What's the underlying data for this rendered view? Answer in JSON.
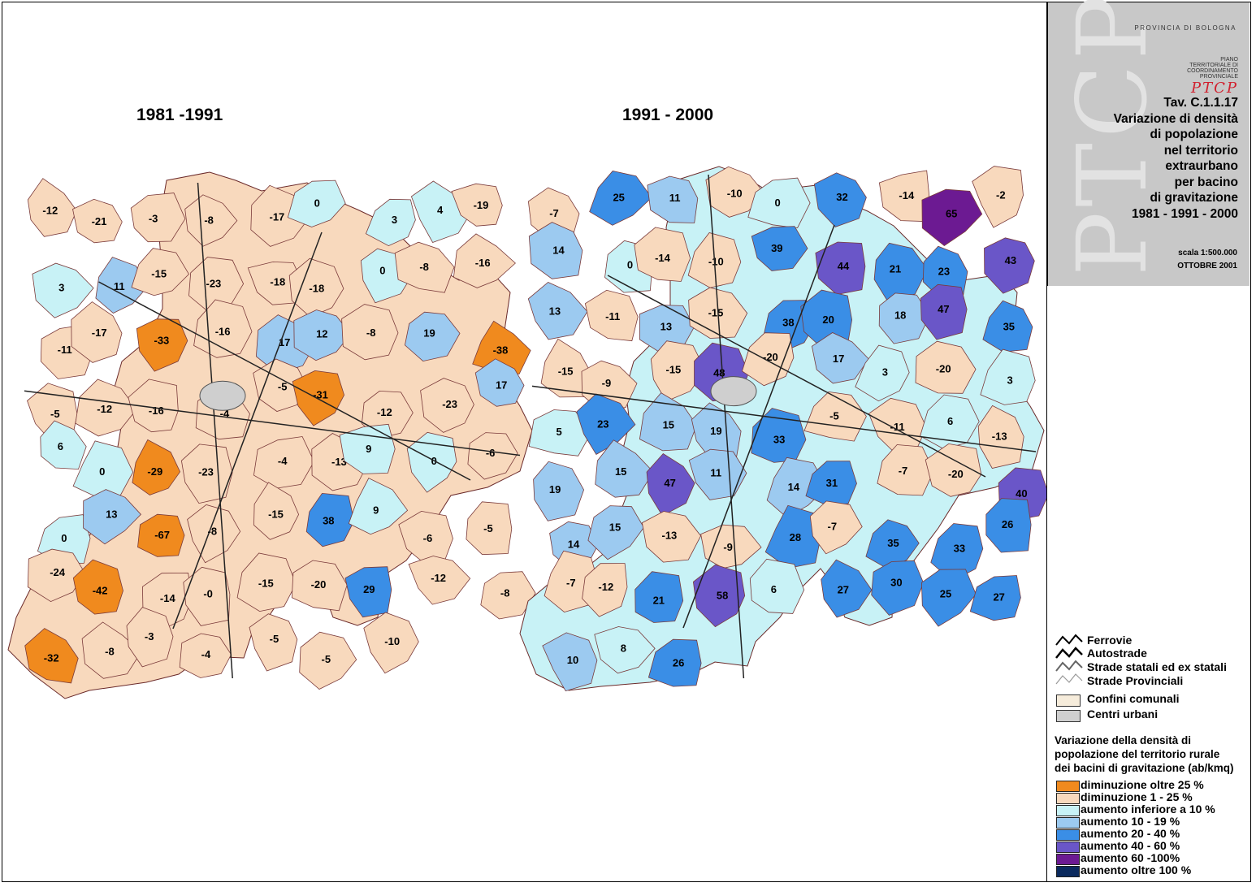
{
  "maps": {
    "left_title": "1981 -1991",
    "right_title": "1991 - 2000",
    "left_labels": [
      "-12",
      "-21",
      "-3",
      "-8",
      "-17",
      "0",
      "3",
      "4",
      "-19",
      "3",
      "11",
      "-15",
      "-23",
      "-18",
      "-18",
      "0",
      "-8",
      "-16",
      "-11",
      "-17",
      "-33",
      "-16",
      "17",
      "12",
      "-8",
      "19",
      "-38",
      "-5",
      "-12",
      "-16",
      "-4",
      "-5",
      "-31",
      "-12",
      "-23",
      "17",
      "6",
      "0",
      "-29",
      "-23",
      "-4",
      "-13",
      "9",
      "0",
      "-6",
      "0",
      "13",
      "-67",
      "-8",
      "-15",
      "38",
      "9",
      "-6",
      "-5",
      "-24",
      "-42",
      "-14",
      "-0",
      "-15",
      "-20",
      "29",
      "-12",
      "-8",
      "-32",
      "-8",
      "-3",
      "-4",
      "-5",
      "-5",
      "-10"
    ],
    "right_labels": [
      "-7",
      "25",
      "11",
      "-10",
      "0",
      "32",
      "-14",
      "65",
      "-2",
      "14",
      "0",
      "-14",
      "-10",
      "39",
      "44",
      "21",
      "23",
      "43",
      "13",
      "-11",
      "13",
      "-15",
      "38",
      "20",
      "18",
      "47",
      "35",
      "-15",
      "-9",
      "-15",
      "48",
      "-20",
      "17",
      "3",
      "-20",
      "3",
      "5",
      "23",
      "15",
      "19",
      "33",
      "-5",
      "-11",
      "6",
      "-13",
      "19",
      "15",
      "47",
      "11",
      "14",
      "31",
      "-7",
      "-20",
      "40",
      "14",
      "15",
      "-13",
      "-9",
      "28",
      "-7",
      "35",
      "33",
      "26",
      "-7",
      "-12",
      "21",
      "58",
      "6",
      "27",
      "30",
      "25",
      "27",
      "10",
      "8",
      "26"
    ]
  },
  "panel": {
    "province": "PROVINCIA DI BOLOGNA",
    "logo_small": "PIANO TERRITORIALE DI COORDINAMENTO PROVINCIALE",
    "logo_big": "PTCP",
    "watermark": "PTCP",
    "title_lines": [
      "Tav. C.1.1.17",
      "Variazione di densità",
      "di popolazione",
      "nel territorio",
      "extraurbano",
      "per bacino",
      "di gravitazione",
      "1981 - 1991 - 2000"
    ],
    "scale": "scala 1:500.000",
    "date": "OTTOBRE 2001"
  },
  "legend": {
    "lines": [
      "Ferrovie",
      "Autostrade",
      "Strade statali ed ex statali",
      "Strade Provinciali"
    ],
    "boxes": [
      {
        "label": "Confini comunali",
        "color": "#f6ecdb"
      },
      {
        "label": "Centri urbani",
        "color": "#cfcfcf"
      }
    ],
    "heading_lines": [
      "Variazione della densità di",
      "popolazione del territorio rurale",
      "dei bacini di gravitazione (ab/kmq)"
    ],
    "classes": [
      {
        "label": "diminuzione oltre 25 %",
        "color": "#f08a1e"
      },
      {
        "label": "diminuzione 1 - 25 %",
        "color": "#f8d9bd"
      },
      {
        "label": "aumento inferiore a 10 %",
        "color": "#c8f2f6"
      },
      {
        "label": "aumento 10 - 19 %",
        "color": "#9ccaf0"
      },
      {
        "label": "aumento 20 - 40 %",
        "color": "#3a8ee6"
      },
      {
        "label": "aumento 40 - 60 %",
        "color": "#6a56c8"
      },
      {
        "label": "aumento 60 -100%",
        "color": "#6c1a92"
      },
      {
        "label": "aumento oltre 100 %",
        "color": "#0b2a5e"
      }
    ]
  }
}
